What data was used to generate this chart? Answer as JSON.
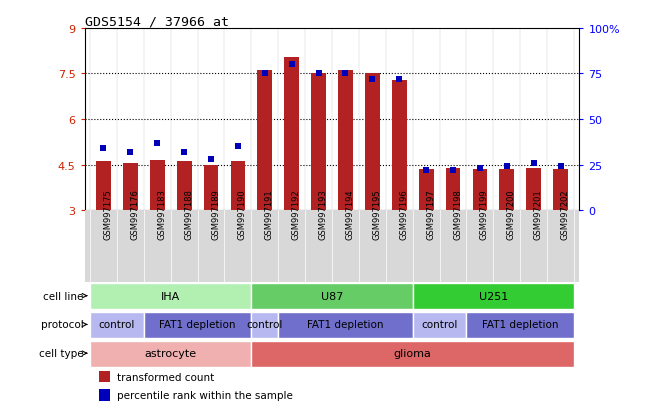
{
  "title": "GDS5154 / 37966_at",
  "samples": [
    "GSM997175",
    "GSM997176",
    "GSM997183",
    "GSM997188",
    "GSM997189",
    "GSM997190",
    "GSM997191",
    "GSM997192",
    "GSM997193",
    "GSM997194",
    "GSM997195",
    "GSM997196",
    "GSM997197",
    "GSM997198",
    "GSM997199",
    "GSM997200",
    "GSM997201",
    "GSM997202"
  ],
  "transformed_count": [
    4.6,
    4.55,
    4.65,
    4.6,
    4.5,
    4.6,
    7.6,
    8.05,
    7.5,
    7.6,
    7.5,
    7.3,
    4.35,
    4.4,
    4.35,
    4.35,
    4.4,
    4.35
  ],
  "percentile_rank": [
    34,
    32,
    37,
    32,
    28,
    35,
    75,
    80,
    75,
    75,
    72,
    72,
    22,
    22,
    23,
    24,
    26,
    24
  ],
  "ylim_left": [
    3,
    9
  ],
  "ylim_right": [
    0,
    100
  ],
  "yticks_left": [
    3,
    4.5,
    6,
    7.5,
    9
  ],
  "yticks_right": [
    0,
    25,
    50,
    75,
    100
  ],
  "ytick_labels_right": [
    "0",
    "25",
    "50",
    "75",
    "100%"
  ],
  "bar_color": "#b22222",
  "dot_color": "#0000bb",
  "cell_line_groups": [
    {
      "label": "IHA",
      "start": 0,
      "end": 6,
      "color": "#b2f0b2"
    },
    {
      "label": "U87",
      "start": 6,
      "end": 12,
      "color": "#66cc66"
    },
    {
      "label": "U251",
      "start": 12,
      "end": 18,
      "color": "#33cc33"
    }
  ],
  "protocol_groups": [
    {
      "label": "control",
      "start": 0,
      "end": 2,
      "color": "#b8b8f0"
    },
    {
      "label": "FAT1 depletion",
      "start": 2,
      "end": 6,
      "color": "#7070cc"
    },
    {
      "label": "control",
      "start": 6,
      "end": 7,
      "color": "#b8b8f0"
    },
    {
      "label": "FAT1 depletion",
      "start": 7,
      "end": 12,
      "color": "#7070cc"
    },
    {
      "label": "control",
      "start": 12,
      "end": 14,
      "color": "#b8b8f0"
    },
    {
      "label": "FAT1 depletion",
      "start": 14,
      "end": 18,
      "color": "#7070cc"
    }
  ],
  "cell_type_groups": [
    {
      "label": "astrocyte",
      "start": 0,
      "end": 6,
      "color": "#f0b0b0"
    },
    {
      "label": "glioma",
      "start": 6,
      "end": 18,
      "color": "#dd6666"
    }
  ],
  "legend_items": [
    {
      "color": "#b22222",
      "label": "transformed count"
    },
    {
      "color": "#0000bb",
      "label": "percentile rank within the sample"
    }
  ]
}
